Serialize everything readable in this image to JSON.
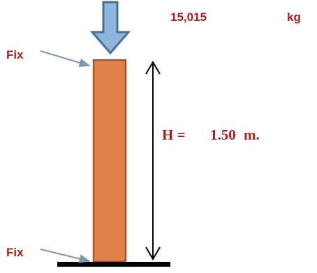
{
  "load": {
    "value": "15,015",
    "unit": "kg"
  },
  "supports": {
    "top_label": "Fix",
    "bottom_label": "Fix"
  },
  "height": {
    "prefix": "H =",
    "value": "1.50",
    "unit": "m."
  },
  "colors": {
    "label_red": "#b01c1c",
    "column_fill": "#e0824a",
    "column_stroke": "#a0552a",
    "load_arrow_fill": "#8fb4de",
    "load_arrow_stroke": "#4a6f96",
    "pointer_arrow": "#7f95ad",
    "ground": "#000000"
  }
}
